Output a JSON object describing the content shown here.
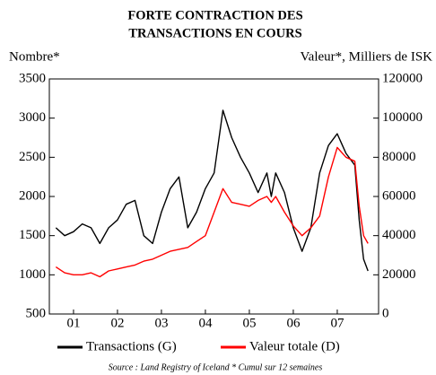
{
  "chart_data": {
    "type": "line",
    "title": [
      "FORTE CONTRACTION DES",
      "TRANSACTIONS EN COURS"
    ],
    "ylabel": "Nombre*",
    "y2label": "Valeur*, Milliers de ISK",
    "source": "Source : Land Registry of Iceland * Cumul sur 12 semaines",
    "x": [
      2001.1,
      2001.3,
      2001.5,
      2001.7,
      2001.9,
      2002.1,
      2002.3,
      2002.5,
      2002.7,
      2002.9,
      2003.1,
      2003.3,
      2003.5,
      2003.7,
      2003.9,
      2004.1,
      2004.3,
      2004.5,
      2004.7,
      2004.9,
      2005.1,
      2005.3,
      2005.5,
      2005.7,
      2005.9,
      2006.0,
      2006.1,
      2006.3,
      2006.5,
      2006.7,
      2006.9,
      2007.1,
      2007.3,
      2007.5,
      2007.7,
      2007.9,
      2008.0,
      2008.1,
      2008.2
    ],
    "series": [
      {
        "name": "Transactions (G)",
        "color": "#000000",
        "axis": "y",
        "values": [
          1600,
          1500,
          1550,
          1650,
          1600,
          1400,
          1600,
          1700,
          1900,
          1950,
          1500,
          1400,
          1800,
          2100,
          2250,
          1600,
          1800,
          2100,
          2300,
          3100,
          2750,
          2500,
          2300,
          2050,
          2300,
          2000,
          2300,
          2050,
          1600,
          1300,
          1600,
          2300,
          2650,
          2800,
          2550,
          2400,
          1700,
          1200,
          1050
        ]
      },
      {
        "name": "Valeur totale (D)",
        "color": "#ff0000",
        "axis": "y2",
        "values": [
          24000,
          21000,
          20000,
          20000,
          21000,
          19000,
          22000,
          23000,
          24000,
          25000,
          27000,
          28000,
          30000,
          32000,
          33000,
          34000,
          37000,
          40000,
          52000,
          64000,
          57000,
          56000,
          55000,
          58000,
          60000,
          57000,
          60000,
          52000,
          45000,
          40000,
          44000,
          50000,
          70000,
          85000,
          80000,
          78000,
          55000,
          40000,
          36000
        ]
      }
    ],
    "xlim": [
      2000.95,
      2008.44
    ],
    "xticks": [
      {
        "value": 2001.5,
        "label": "01"
      },
      {
        "value": 2002.5,
        "label": "02"
      },
      {
        "value": 2003.5,
        "label": "03"
      },
      {
        "value": 2004.5,
        "label": "04"
      },
      {
        "value": 2005.5,
        "label": "05"
      },
      {
        "value": 2006.5,
        "label": "06"
      },
      {
        "value": 2007.5,
        "label": "07"
      }
    ],
    "ylim": [
      500,
      3500
    ],
    "yticks": [
      500,
      1000,
      1500,
      2000,
      2500,
      3000,
      3500
    ],
    "y2lim": [
      0,
      120000
    ],
    "y2ticks": [
      0,
      20000,
      40000,
      60000,
      80000,
      100000,
      120000
    ],
    "grid": false
  }
}
